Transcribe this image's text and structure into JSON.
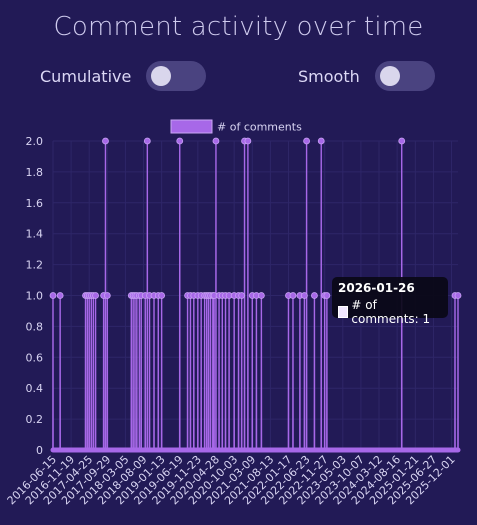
{
  "page": {
    "title": "Comment activity over time"
  },
  "controls": {
    "cumulative": {
      "label": "Cumulative",
      "on": false
    },
    "smooth": {
      "label": "Smooth",
      "on": false
    }
  },
  "tooltip": {
    "title": "2026-01-26",
    "label": "# of comments: 1"
  },
  "colors": {
    "background": "#221a56",
    "series": "#a768e8",
    "grid": "#2e2668",
    "text": "#d8d4f2"
  },
  "chart_data": {
    "type": "line",
    "title": "",
    "xlabel": "",
    "ylabel": "",
    "ylim": [
      0,
      2
    ],
    "yticks": [
      "2.0",
      "1.8",
      "1.6",
      "1.4",
      "1.2",
      "1.0",
      "0.8",
      "0.6",
      "0.4",
      "0.2",
      "0"
    ],
    "grid": true,
    "legend": "top-center",
    "x_axis": {
      "start": "2016-06-15",
      "end": "2026-01-26"
    },
    "xtick_labels": [
      "2016-06-15",
      "2016-11-19",
      "2017-04-25",
      "2017-09-29",
      "2018-03-05",
      "2018-08-09",
      "2019-01-13",
      "2019-06-19",
      "2019-11-23",
      "2020-04-28",
      "2020-10-03",
      "2021-03-09",
      "2021-08-13",
      "2022-01-17",
      "2022-06-23",
      "2022-11-27",
      "2023-05-03",
      "2023-10-07",
      "2024-03-12",
      "2024-08-16",
      "2025-01-21",
      "2025-06-27",
      "2025-12-01"
    ],
    "series": [
      {
        "name": "# of comments",
        "color": "#a768e8",
        "points": [
          [
            "2016-06-15",
            1
          ],
          [
            "2016-08-16",
            1
          ],
          [
            "2017-03-24",
            1
          ],
          [
            "2017-04-09",
            1
          ],
          [
            "2017-04-25",
            1
          ],
          [
            "2017-05-13",
            1
          ],
          [
            "2017-05-31",
            1
          ],
          [
            "2017-06-19",
            1
          ],
          [
            "2017-08-28",
            1
          ],
          [
            "2017-09-13",
            2
          ],
          [
            "2017-09-29",
            1
          ],
          [
            "2018-04-25",
            1
          ],
          [
            "2018-05-11",
            1
          ],
          [
            "2018-05-27",
            1
          ],
          [
            "2018-06-12",
            1
          ],
          [
            "2018-07-04",
            1
          ],
          [
            "2018-07-20",
            1
          ],
          [
            "2018-08-24",
            1
          ],
          [
            "2018-09-11",
            2
          ],
          [
            "2018-09-30",
            1
          ],
          [
            "2018-11-08",
            1
          ],
          [
            "2018-12-15",
            1
          ],
          [
            "2019-01-13",
            1
          ],
          [
            "2019-06-19",
            2
          ],
          [
            "2019-08-26",
            1
          ],
          [
            "2019-09-20",
            1
          ],
          [
            "2019-10-19",
            1
          ],
          [
            "2019-11-23",
            1
          ],
          [
            "2019-12-22",
            1
          ],
          [
            "2020-01-21",
            1
          ],
          [
            "2020-02-08",
            1
          ],
          [
            "2020-02-24",
            1
          ],
          [
            "2020-03-12",
            1
          ],
          [
            "2020-04-01",
            1
          ],
          [
            "2020-04-12",
            1
          ],
          [
            "2020-04-28",
            2
          ],
          [
            "2020-05-25",
            1
          ],
          [
            "2020-06-22",
            1
          ],
          [
            "2020-07-20",
            1
          ],
          [
            "2020-08-20",
            1
          ],
          [
            "2020-10-03",
            1
          ],
          [
            "2020-11-10",
            1
          ],
          [
            "2020-12-07",
            1
          ],
          [
            "2021-01-01",
            2
          ],
          [
            "2021-01-30",
            2
          ],
          [
            "2021-03-09",
            1
          ],
          [
            "2021-04-14",
            1
          ],
          [
            "2021-05-27",
            1
          ],
          [
            "2022-01-17",
            1
          ],
          [
            "2022-02-25",
            1
          ],
          [
            "2022-04-26",
            1
          ],
          [
            "2022-06-04",
            1
          ],
          [
            "2022-06-23",
            2
          ],
          [
            "2022-08-30",
            1
          ],
          [
            "2022-10-28",
            2
          ],
          [
            "2022-11-27",
            1
          ],
          [
            "2022-12-16",
            1
          ],
          [
            "2024-09-25",
            2
          ],
          [
            "2025-12-31",
            1
          ],
          [
            "2026-01-26",
            1
          ]
        ]
      }
    ]
  }
}
